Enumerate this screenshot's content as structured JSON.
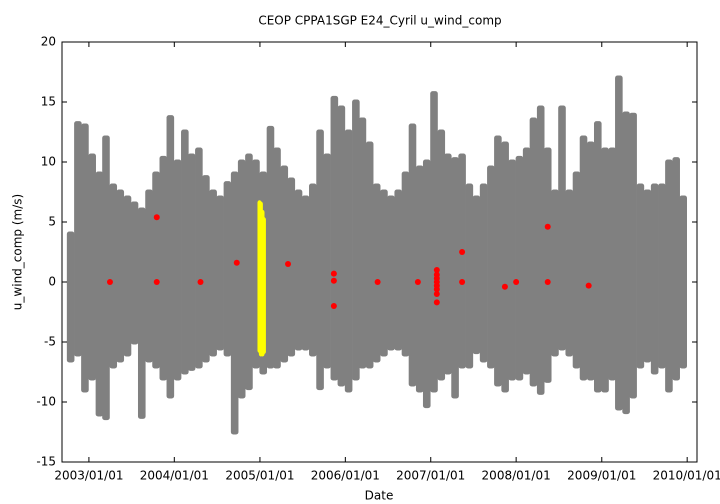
{
  "chart_data": {
    "type": "range-scatter",
    "title": "CEOP CPPA1SGP E24_Cyril  u_wind_comp",
    "x_label": "Date",
    "y_label": "u_wind_comp (m/s)",
    "xlim": [
      "2002/09/08",
      "2010/02/12"
    ],
    "ylim": [
      -15,
      20
    ],
    "xticks": [
      "2003/01/01",
      "2004/01/01",
      "2005/01/01",
      "2006/01/01",
      "2007/01/01",
      "2008/01/01",
      "2009/01/01",
      "2010/01/01"
    ],
    "yticks": [
      -15,
      -10,
      -5,
      0,
      5,
      10,
      15,
      20
    ],
    "series": [
      {
        "color": "#808080",
        "kind": "range",
        "x": [
          "2002/10/15",
          "2002/11/15",
          "2002/12/15",
          "2003/01/15",
          "2003/02/15",
          "2003/03/15",
          "2003/04/15",
          "2003/05/15",
          "2003/06/15",
          "2003/07/15",
          "2003/08/15",
          "2003/09/15",
          "2003/10/15",
          "2003/11/15",
          "2003/12/15",
          "2004/01/15",
          "2004/02/15",
          "2004/03/15",
          "2004/04/15",
          "2004/05/15",
          "2004/06/15",
          "2004/07/15",
          "2004/08/15",
          "2004/09/15",
          "2004/10/15",
          "2004/11/15",
          "2004/12/15",
          "2005/01/15",
          "2005/02/15",
          "2005/03/15",
          "2005/04/15",
          "2005/05/15",
          "2005/06/15",
          "2005/07/15",
          "2005/08/15",
          "2005/09/15",
          "2005/10/15",
          "2005/11/15",
          "2005/12/15",
          "2006/01/15",
          "2006/02/15",
          "2006/03/15",
          "2006/04/15",
          "2006/05/15",
          "2006/06/15",
          "2006/07/15",
          "2006/08/15",
          "2006/09/15",
          "2006/10/15",
          "2006/11/15",
          "2006/12/15",
          "2007/01/15",
          "2007/02/15",
          "2007/03/15",
          "2007/04/15",
          "2007/05/15",
          "2007/06/15",
          "2007/07/15",
          "2007/08/15",
          "2007/09/15",
          "2007/10/15",
          "2007/11/15",
          "2007/12/15",
          "2008/01/15",
          "2008/02/15",
          "2008/03/15",
          "2008/04/15",
          "2008/05/15",
          "2008/06/15",
          "2008/07/15",
          "2008/08/15",
          "2008/09/15",
          "2008/10/15",
          "2008/11/15",
          "2008/12/15",
          "2009/01/15",
          "2009/02/15",
          "2009/03/15",
          "2009/04/15",
          "2009/05/15",
          "2009/06/15",
          "2009/07/15",
          "2009/08/15",
          "2009/09/15",
          "2009/10/15",
          "2009/11/15",
          "2009/12/15"
        ],
        "low": [
          -6.5,
          -6,
          -9,
          -8,
          -11,
          -11.3,
          -7,
          -6.5,
          -6,
          -5,
          -11.2,
          -6.5,
          -7,
          -8,
          -9.5,
          -8,
          -7.5,
          -7.2,
          -7,
          -6.5,
          -6,
          -5.5,
          -6,
          -12.5,
          -9.5,
          -8.8,
          -7,
          -7.5,
          -7,
          -7,
          -6.5,
          -6,
          -5.5,
          -5.5,
          -6,
          -8.8,
          -7,
          -8,
          -8.5,
          -9,
          -8,
          -7,
          -7,
          -6.5,
          -6,
          -5.5,
          -5.5,
          -6,
          -8.5,
          -9,
          -10.3,
          -9,
          -8,
          -7.5,
          -9.5,
          -7,
          -7,
          -5.8,
          -6.5,
          -7,
          -8.5,
          -9,
          -8,
          -8,
          -7.5,
          -8.5,
          -9.2,
          -8.2,
          -6,
          -5.5,
          -6,
          -7,
          -8,
          -8,
          -9,
          -9,
          -8,
          -10.5,
          -10.8,
          -9.5,
          -7,
          -6.5,
          -7.5,
          -7,
          -9,
          -8,
          -7
        ],
        "high": [
          4,
          13.2,
          13,
          10.5,
          9,
          12,
          8,
          7.5,
          7,
          6.5,
          6,
          7.5,
          9,
          10.3,
          13.7,
          10,
          12.5,
          10.5,
          11,
          8.7,
          7.5,
          7,
          8.2,
          9,
          10,
          10.5,
          10,
          9,
          12.8,
          11,
          9.5,
          8.5,
          7.5,
          7,
          8,
          12.5,
          10.5,
          15.3,
          14.5,
          12.5,
          15,
          13.5,
          11.5,
          8,
          7.5,
          7,
          7.5,
          9,
          13,
          9.5,
          10,
          15.7,
          12.5,
          10.5,
          10.2,
          10.5,
          8,
          7,
          8,
          9.5,
          12,
          11.5,
          10,
          10.3,
          11,
          13.5,
          14.5,
          11,
          7.5,
          14.5,
          7.5,
          9,
          12,
          11.5,
          13.2,
          11,
          11,
          17,
          14,
          13.9,
          8,
          7.5,
          8,
          8,
          10,
          10.2,
          7
        ]
      },
      {
        "color": "#ffff00",
        "kind": "range",
        "x": [
          "2004/12/30",
          "2005/01/05",
          "2005/01/12",
          "2005/01/18"
        ],
        "low": [
          -5.7,
          -6,
          -6,
          -5.8
        ],
        "high": [
          6.6,
          6.5,
          5.8,
          5.2
        ]
      },
      {
        "color": "#ff0000",
        "kind": "points",
        "x": [
          "2003/04/01",
          "2003/10/18",
          "2003/10/18",
          "2004/04/22",
          "2004/09/24",
          "2005/05/01",
          "2005/11/13",
          "2005/11/13",
          "2005/11/13",
          "2006/05/19",
          "2006/11/07",
          "2007/01/27",
          "2007/01/27",
          "2007/01/27",
          "2007/01/27",
          "2007/01/27",
          "2007/01/27",
          "2007/01/27",
          "2007/01/27",
          "2007/05/15",
          "2007/05/15",
          "2007/11/14",
          "2008/01/01",
          "2008/05/15",
          "2008/05/15",
          "2008/11/06"
        ],
        "values": [
          0,
          5.4,
          0,
          0,
          1.6,
          1.5,
          0.7,
          0.1,
          -2,
          0,
          0,
          1,
          0.6,
          0.3,
          0,
          -0.3,
          -0.6,
          -1,
          -1.7,
          2.5,
          0,
          -0.4,
          0,
          4.6,
          0,
          -0.3
        ]
      }
    ]
  }
}
